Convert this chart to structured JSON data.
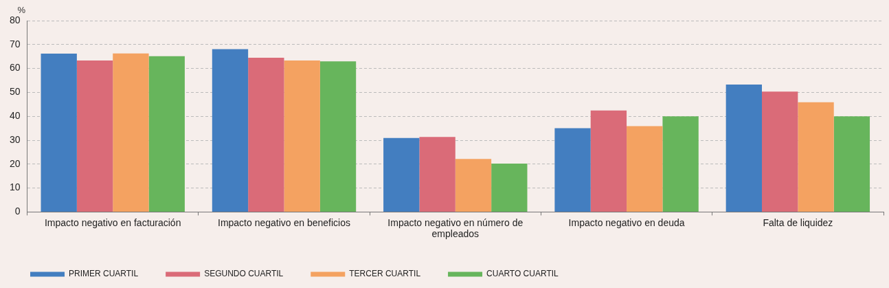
{
  "chart_data": {
    "type": "bar",
    "ylabel": "%",
    "categories": [
      "Impacto negativo en facturación",
      "Impacto negativo en beneficios",
      "Impacto negativo en número de empleados",
      "Impacto negativo en deuda",
      "Falta de liquidez"
    ],
    "series": [
      {
        "name": "PRIMER CUARTIL",
        "color": "#437ec0",
        "values": [
          66.2,
          68.1,
          30.9,
          35.0,
          53.3
        ]
      },
      {
        "name": "SEGUNDO CUARTIL",
        "color": "#da6b78",
        "values": [
          63.3,
          64.5,
          31.4,
          42.4,
          50.3
        ]
      },
      {
        "name": "TERCER CUARTIL",
        "color": "#f4a261",
        "values": [
          66.3,
          63.3,
          22.2,
          35.9,
          45.9
        ]
      },
      {
        "name": "CUARTO CUARTIL",
        "color": "#67b55c",
        "values": [
          65.1,
          63.0,
          20.2,
          40.0,
          40.0
        ]
      }
    ],
    "ylim": [
      0,
      80
    ],
    "yticks": [
      0,
      10,
      20,
      30,
      40,
      50,
      60,
      70,
      80
    ],
    "grid": "y",
    "legend": "bottom left"
  }
}
